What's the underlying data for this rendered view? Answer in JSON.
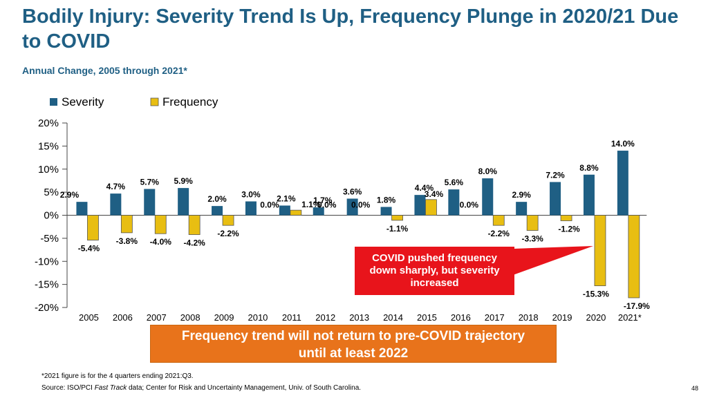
{
  "slide": {
    "title": "Bodily Injury: Severity Trend Is Up, Frequency Plunge in 2020/21 Due to COVID",
    "subtitle": "Annual Change, 2005 through 2021*",
    "callout": "COVID pushed frequency down sharply, but severity increased",
    "banner": "Frequency trend will not return to pre-COVID trajectory until at least 2022",
    "footnote_line1": "*2021 figure is for the 4 quarters ending 2021:Q3.",
    "footnote_source_prefix": "Source: ISO/PCI ",
    "footnote_source_italic": "Fast Track",
    "footnote_source_suffix": " data; Center for Risk and Uncertainty Management, Univ. of South Carolina.",
    "page_number": "48"
  },
  "chart_data": {
    "type": "bar",
    "title": "Annual Change, 2005 through 2021*",
    "categories": [
      "2005",
      "2006",
      "2007",
      "2008",
      "2009",
      "2010",
      "2011",
      "2012",
      "2013",
      "2014",
      "2015",
      "2016",
      "2017",
      "2018",
      "2019",
      "2020",
      "2021*"
    ],
    "series": [
      {
        "name": "Severity",
        "color": "#1f5f84",
        "values": [
          2.9,
          4.7,
          5.7,
          5.9,
          2.0,
          3.0,
          2.1,
          1.7,
          3.6,
          1.8,
          4.4,
          5.6,
          8.0,
          2.9,
          7.2,
          8.8,
          14.0
        ],
        "labels": [
          "2.9%",
          "4.7%",
          "5.7%",
          "5.9%",
          "2.0%",
          "3.0%",
          "2.1%",
          "1.7%",
          "3.6%",
          "1.8%",
          "4.4%",
          "5.6%",
          "8.0%",
          "2.9%",
          "7.2%",
          "8.8%",
          "14.0%"
        ]
      },
      {
        "name": "Frequency",
        "color": "#e8be12",
        "values": [
          -5.4,
          -3.8,
          -4.0,
          -4.2,
          -2.2,
          0.0,
          1.1,
          0.0,
          0.0,
          -1.1,
          3.4,
          0.0,
          -2.2,
          -3.3,
          -1.2,
          -15.3,
          -17.9
        ],
        "labels": [
          "-5.4%",
          "-3.8%",
          "-4.0%",
          "-4.2%",
          "-2.2%",
          "0.0%",
          "1.1%",
          "0.0%",
          "0.0%",
          "-1.1%",
          "3.4%",
          "0.0%",
          "-2.2%",
          "-3.3%",
          "-1.2%",
          "-15.3%",
          "-17.9%"
        ]
      }
    ],
    "ylim": [
      -20,
      20
    ],
    "yticks": [
      20,
      15,
      10,
      5,
      0,
      -5,
      -10,
      -15,
      -20
    ],
    "ytick_labels": [
      "20%",
      "15%",
      "10%",
      "5%",
      "0%",
      "-5%",
      "-10%",
      "-15%",
      "-20%"
    ],
    "legend": {
      "position": "top-left",
      "entries": [
        "Severity",
        "Frequency"
      ]
    },
    "grid": false
  }
}
